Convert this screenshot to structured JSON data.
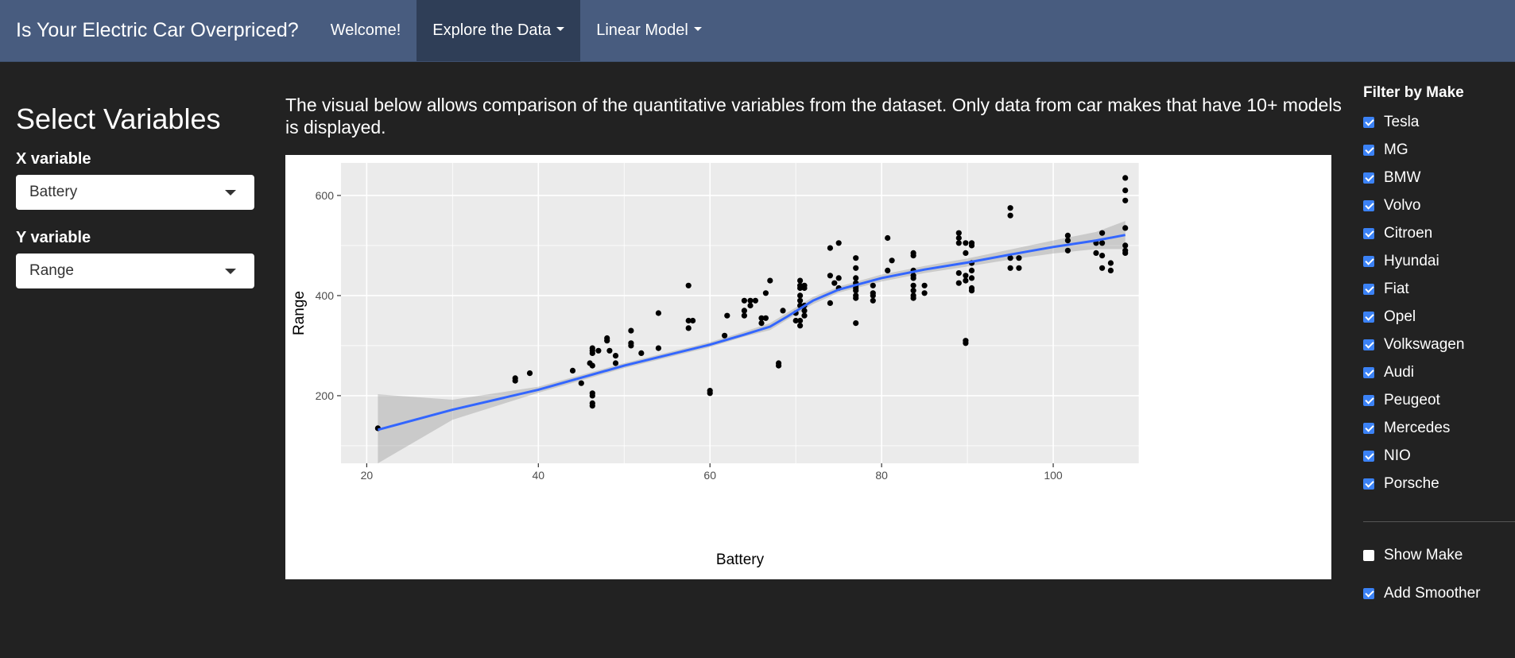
{
  "navbar": {
    "brand": "Is Your Electric Car Overpriced?",
    "items": [
      {
        "label": "Welcome!",
        "dropdown": false,
        "active": false
      },
      {
        "label": "Explore the Data",
        "dropdown": true,
        "active": true
      },
      {
        "label": "Linear Model",
        "dropdown": true,
        "active": false
      }
    ]
  },
  "sidebar": {
    "title": "Select Variables",
    "x_label": "X variable",
    "x_value": "Battery",
    "y_label": "Y variable",
    "y_value": "Range"
  },
  "main": {
    "description": "The visual below allows comparison of the quantitative variables from the dataset. Only data from car makes that have 10+ models is displayed."
  },
  "filters": {
    "title": "Filter by Make",
    "makes": [
      {
        "label": "Tesla",
        "checked": true
      },
      {
        "label": "MG",
        "checked": true
      },
      {
        "label": "BMW",
        "checked": true
      },
      {
        "label": "Volvo",
        "checked": true
      },
      {
        "label": "Citroen",
        "checked": true
      },
      {
        "label": "Hyundai",
        "checked": true
      },
      {
        "label": "Fiat",
        "checked": true
      },
      {
        "label": "Opel",
        "checked": true
      },
      {
        "label": "Volkswagen",
        "checked": true
      },
      {
        "label": "Audi",
        "checked": true
      },
      {
        "label": "Peugeot",
        "checked": true
      },
      {
        "label": "Mercedes",
        "checked": true
      },
      {
        "label": "NIO",
        "checked": true
      },
      {
        "label": "Porsche",
        "checked": true
      }
    ],
    "show_make": {
      "label": "Show Make",
      "checked": false
    },
    "add_smoother": {
      "label": "Add Smoother",
      "checked": true
    }
  },
  "colors": {
    "navbar": "#485c7f",
    "nav_active": "#2f3e57",
    "background": "#222222",
    "panel": "#ebebeb",
    "smoother": "#3366ff",
    "checkbox": "#3b82f6"
  },
  "chart_data": {
    "type": "scatter",
    "xlabel": "Battery",
    "ylabel": "Range",
    "xlim": [
      17,
      110
    ],
    "ylim": [
      65,
      665
    ],
    "x_ticks": [
      20,
      40,
      60,
      80,
      100
    ],
    "y_ticks": [
      200,
      400,
      600
    ],
    "grid": true,
    "points": [
      [
        21.3,
        135
      ],
      [
        37.3,
        230
      ],
      [
        37.3,
        235
      ],
      [
        39,
        245
      ],
      [
        44,
        250
      ],
      [
        45,
        225
      ],
      [
        46,
        265
      ],
      [
        46.3,
        290
      ],
      [
        46.3,
        285
      ],
      [
        46.3,
        295
      ],
      [
        46.3,
        260
      ],
      [
        46.3,
        205
      ],
      [
        46.3,
        200
      ],
      [
        46.3,
        185
      ],
      [
        46.3,
        180
      ],
      [
        47,
        290
      ],
      [
        48,
        310
      ],
      [
        48,
        315
      ],
      [
        48.3,
        290
      ],
      [
        49,
        280
      ],
      [
        49,
        265
      ],
      [
        50.8,
        330
      ],
      [
        50.8,
        305
      ],
      [
        50.8,
        300
      ],
      [
        52,
        285
      ],
      [
        54,
        295
      ],
      [
        54,
        365
      ],
      [
        57.5,
        420
      ],
      [
        57.5,
        350
      ],
      [
        57.5,
        335
      ],
      [
        58,
        350
      ],
      [
        60,
        210
      ],
      [
        60,
        205
      ],
      [
        61.7,
        320
      ],
      [
        62,
        360
      ],
      [
        64,
        390
      ],
      [
        64,
        370
      ],
      [
        64,
        360
      ],
      [
        64.7,
        390
      ],
      [
        64.7,
        380
      ],
      [
        65.3,
        390
      ],
      [
        66,
        355
      ],
      [
        66,
        345
      ],
      [
        66.5,
        405
      ],
      [
        66.5,
        355
      ],
      [
        67,
        430
      ],
      [
        68,
        265
      ],
      [
        68,
        260
      ],
      [
        68.5,
        370
      ],
      [
        70,
        365
      ],
      [
        70,
        350
      ],
      [
        70.5,
        430
      ],
      [
        70.5,
        420
      ],
      [
        70.5,
        415
      ],
      [
        70.5,
        400
      ],
      [
        70.5,
        390
      ],
      [
        70.5,
        380
      ],
      [
        70.5,
        350
      ],
      [
        70.5,
        340
      ],
      [
        71,
        420
      ],
      [
        71,
        415
      ],
      [
        71,
        380
      ],
      [
        71,
        370
      ],
      [
        71,
        360
      ],
      [
        74,
        495
      ],
      [
        74,
        440
      ],
      [
        74,
        385
      ],
      [
        74.5,
        425
      ],
      [
        75,
        505
      ],
      [
        75,
        435
      ],
      [
        75,
        415
      ],
      [
        77,
        475
      ],
      [
        77,
        455
      ],
      [
        77,
        435
      ],
      [
        77,
        425
      ],
      [
        77,
        420
      ],
      [
        77,
        415
      ],
      [
        77,
        410
      ],
      [
        77,
        400
      ],
      [
        77,
        395
      ],
      [
        77,
        345
      ],
      [
        79,
        420
      ],
      [
        79,
        405
      ],
      [
        79,
        400
      ],
      [
        79,
        390
      ],
      [
        80.7,
        515
      ],
      [
        80.7,
        450
      ],
      [
        81.2,
        470
      ],
      [
        83.7,
        485
      ],
      [
        83.7,
        480
      ],
      [
        83.7,
        450
      ],
      [
        83.7,
        440
      ],
      [
        83.7,
        435
      ],
      [
        83.7,
        420
      ],
      [
        83.7,
        410
      ],
      [
        83.7,
        400
      ],
      [
        83.7,
        395
      ],
      [
        85,
        420
      ],
      [
        85,
        405
      ],
      [
        89,
        525
      ],
      [
        89,
        515
      ],
      [
        89,
        505
      ],
      [
        89,
        445
      ],
      [
        89,
        425
      ],
      [
        89.8,
        505
      ],
      [
        89.8,
        485
      ],
      [
        89.8,
        440
      ],
      [
        89.8,
        430
      ],
      [
        89.8,
        310
      ],
      [
        89.8,
        305
      ],
      [
        90.5,
        505
      ],
      [
        90.5,
        500
      ],
      [
        90.5,
        465
      ],
      [
        90.5,
        450
      ],
      [
        90.5,
        435
      ],
      [
        90.5,
        415
      ],
      [
        90.5,
        410
      ],
      [
        95,
        575
      ],
      [
        95,
        560
      ],
      [
        95,
        475
      ],
      [
        95,
        455
      ],
      [
        96,
        475
      ],
      [
        96,
        455
      ],
      [
        101.7,
        520
      ],
      [
        101.7,
        510
      ],
      [
        101.7,
        490
      ],
      [
        105,
        505
      ],
      [
        105,
        485
      ],
      [
        105.7,
        525
      ],
      [
        105.7,
        505
      ],
      [
        105.7,
        480
      ],
      [
        105.7,
        455
      ],
      [
        106.7,
        465
      ],
      [
        106.7,
        450
      ],
      [
        108.4,
        635
      ],
      [
        108.4,
        610
      ],
      [
        108.4,
        590
      ],
      [
        108.4,
        535
      ],
      [
        108.4,
        500
      ],
      [
        108.4,
        490
      ],
      [
        108.4,
        485
      ]
    ],
    "smoother": {
      "x": [
        21.3,
        30,
        40,
        50,
        60,
        64,
        67,
        69,
        72,
        75,
        80,
        85,
        90,
        95,
        100,
        105,
        108.4
      ],
      "y": [
        132,
        172,
        212,
        260,
        302,
        322,
        338,
        358,
        390,
        412,
        435,
        452,
        466,
        482,
        497,
        510,
        521
      ],
      "se_lower": [
        65,
        152,
        206,
        255,
        297,
        318,
        331,
        352,
        383,
        406,
        428,
        445,
        458,
        472,
        484,
        493,
        493
      ],
      "se_upper": [
        203,
        192,
        218,
        265,
        307,
        328,
        345,
        366,
        397,
        418,
        442,
        459,
        474,
        492,
        510,
        527,
        549
      ]
    }
  }
}
